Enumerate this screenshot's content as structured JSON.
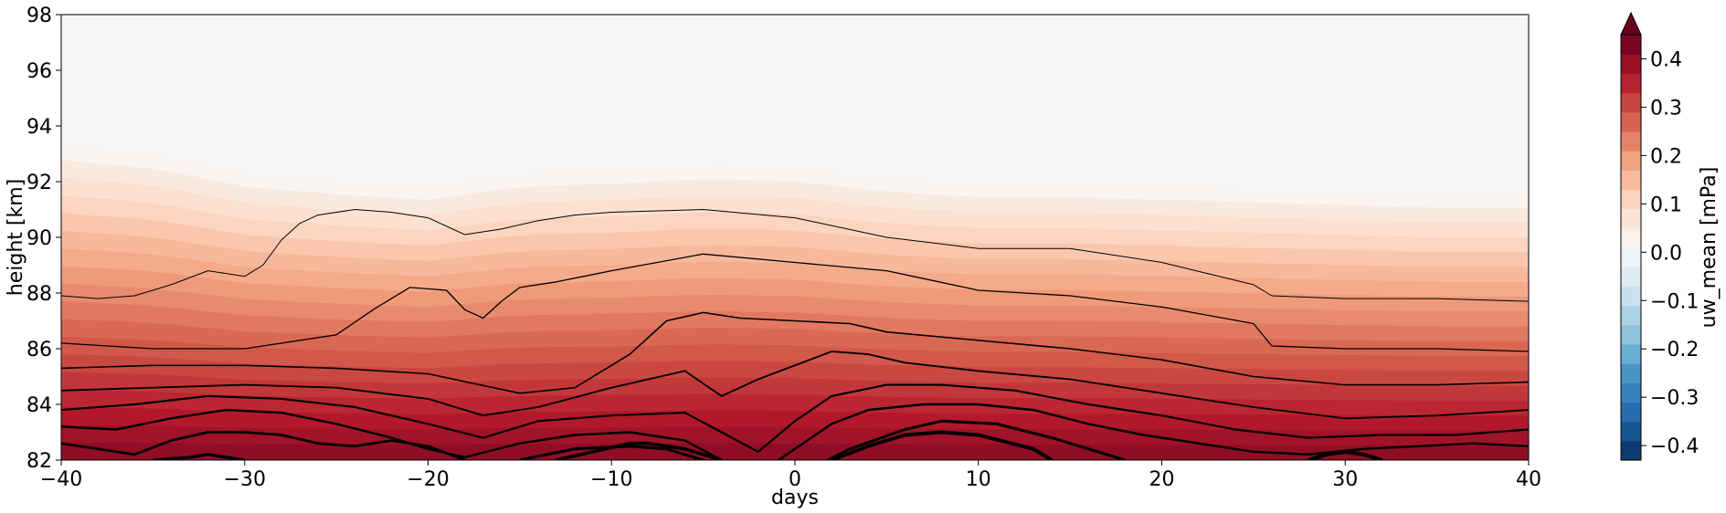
{
  "chart_data": {
    "type": "heatmap",
    "subtype": "filled-contour",
    "xlabel": "days",
    "ylabel": "height [km]",
    "xlim": [
      -40,
      40
    ],
    "ylim": [
      82,
      98
    ],
    "xticks": [
      -40,
      -30,
      -20,
      -10,
      0,
      10,
      20,
      30,
      40
    ],
    "yticks": [
      82,
      84,
      86,
      88,
      90,
      92,
      94,
      96,
      98
    ],
    "colormap": "RdBu_r",
    "colorbar": {
      "label": "uw_mean [mPa]",
      "range": [
        -0.43,
        0.45
      ],
      "ticks": [
        -0.4,
        -0.3,
        -0.2,
        -0.1,
        0.0,
        0.1,
        0.2,
        0.3,
        0.4
      ],
      "extend": "max"
    },
    "contour_color": "#000000",
    "levels_top_height_km": [
      {
        "x": [
          -40,
          -35,
          -30,
          -25,
          -20,
          -15,
          -10,
          -5,
          0,
          5,
          10,
          15,
          20,
          25,
          30,
          35,
          40
        ],
        "y": [
          93.4,
          93.1,
          92.4,
          92.1,
          91.9,
          92.4,
          92.5,
          92.7,
          92.6,
          92.2,
          92.0,
          92.0,
          91.9,
          91.8,
          91.7,
          91.6,
          91.6
        ]
      }
    ],
    "contour_lines": [
      {
        "name": "",
        "x": [
          -40,
          -38,
          -36,
          -34,
          -32,
          -30,
          -29,
          -28,
          -27,
          -26,
          -24,
          -22,
          -20,
          -18,
          -16,
          -14,
          -12,
          -10,
          -5,
          0,
          5,
          10,
          15,
          20,
          25,
          26,
          30,
          35,
          40
        ],
        "y": [
          87.9,
          87.8,
          87.9,
          88.3,
          88.8,
          88.6,
          89.0,
          89.9,
          90.5,
          90.8,
          91.0,
          90.9,
          90.7,
          90.1,
          90.3,
          90.6,
          90.8,
          90.9,
          91.0,
          90.7,
          90.0,
          89.6,
          89.6,
          89.1,
          88.3,
          87.9,
          87.8,
          87.8,
          87.7
        ]
      },
      {
        "name": "",
        "x": [
          -40,
          -35,
          -30,
          -25,
          -23,
          -21,
          -19,
          -18,
          -17,
          -16,
          -15,
          -13,
          -10,
          -5,
          0,
          5,
          10,
          15,
          20,
          25,
          26,
          30,
          35,
          40
        ],
        "y": [
          86.2,
          86.0,
          86.0,
          86.5,
          87.4,
          88.2,
          88.1,
          87.4,
          87.1,
          87.7,
          88.2,
          88.4,
          88.8,
          89.4,
          89.1,
          88.8,
          88.1,
          87.9,
          87.5,
          86.9,
          86.1,
          86.0,
          86.0,
          85.9
        ]
      },
      {
        "name": "",
        "x": [
          -40,
          -35,
          -30,
          -25,
          -20,
          -15,
          -12,
          -9,
          -7,
          -5,
          -3,
          0,
          3,
          5,
          10,
          15,
          20,
          25,
          30,
          35,
          40
        ],
        "y": [
          85.3,
          85.4,
          85.4,
          85.3,
          85.1,
          84.4,
          84.6,
          85.8,
          87.0,
          87.3,
          87.1,
          87.0,
          86.9,
          86.6,
          86.3,
          86.0,
          85.6,
          85.0,
          84.7,
          84.7,
          84.8
        ]
      },
      {
        "name": "",
        "x": [
          -40,
          -35,
          -30,
          -25,
          -20,
          -17,
          -14,
          -10,
          -6,
          -4,
          -2,
          0,
          2,
          4,
          6,
          10,
          15,
          20,
          25,
          30,
          35,
          40
        ],
        "y": [
          84.5,
          84.6,
          84.7,
          84.6,
          84.2,
          83.6,
          83.9,
          84.6,
          85.2,
          84.3,
          84.9,
          85.4,
          85.9,
          85.8,
          85.5,
          85.2,
          84.9,
          84.4,
          83.9,
          83.5,
          83.6,
          83.8
        ]
      },
      {
        "name": "",
        "x": [
          -40,
          -36,
          -32,
          -28,
          -24,
          -20,
          -17,
          -14,
          -10,
          -6,
          -4,
          -2,
          0,
          2,
          5,
          8,
          12,
          16,
          20,
          24,
          28,
          32,
          36,
          40
        ],
        "y": [
          83.8,
          84.0,
          84.3,
          84.2,
          83.9,
          83.3,
          82.8,
          83.4,
          83.6,
          83.7,
          83.0,
          82.3,
          83.4,
          84.3,
          84.7,
          84.7,
          84.5,
          84.0,
          83.6,
          83.1,
          82.8,
          82.9,
          82.9,
          83.1
        ]
      },
      {
        "name": "",
        "x": [
          -40,
          -37,
          -34,
          -31,
          -28,
          -25,
          -22,
          -20,
          -18,
          -15,
          -12,
          -9,
          -6,
          -4,
          -2,
          0,
          2,
          4,
          7,
          10,
          13,
          16,
          19,
          22,
          25,
          28,
          31,
          34,
          37,
          40
        ],
        "y": [
          83.2,
          83.1,
          83.5,
          83.8,
          83.7,
          83.3,
          82.8,
          82.4,
          82.1,
          82.6,
          82.9,
          83.0,
          82.7,
          82.0,
          81.5,
          82.4,
          83.3,
          83.8,
          84.0,
          84.0,
          83.8,
          83.3,
          82.9,
          82.6,
          82.3,
          82.2,
          82.4,
          82.5,
          82.6,
          82.5
        ]
      },
      {
        "name": "",
        "x": [
          -40,
          -38,
          -36,
          -34,
          -32,
          -30,
          -28,
          -26,
          -24,
          -22,
          -20,
          -18
        ],
        "y": [
          82.6,
          82.4,
          82.2,
          82.7,
          83.0,
          83.0,
          82.9,
          82.6,
          82.5,
          82.7,
          82.5,
          82.0
        ]
      },
      {
        "name": "",
        "x": [
          -15,
          -12,
          -9,
          -7,
          -5,
          -3,
          0,
          3,
          6,
          8,
          11,
          14,
          16,
          18
        ],
        "y": [
          82.0,
          82.4,
          82.5,
          82.4,
          82.0,
          81.6,
          81.4,
          82.4,
          83.1,
          83.4,
          83.3,
          82.8,
          82.4,
          82.0
        ]
      },
      {
        "name": "",
        "x": [
          -35,
          -33,
          -32,
          -31,
          -30
        ],
        "y": [
          82.0,
          82.1,
          82.2,
          82.1,
          82.0
        ]
      },
      {
        "name": "",
        "x": [
          -13,
          -11,
          -9,
          -8,
          -6,
          -4
        ],
        "y": [
          82.0,
          82.3,
          82.6,
          82.6,
          82.4,
          82.0
        ]
      },
      {
        "name": "",
        "x": [
          2,
          4,
          6,
          8,
          10,
          13,
          14
        ],
        "y": [
          82.0,
          82.5,
          82.9,
          83.0,
          82.9,
          82.4,
          82.0
        ]
      },
      {
        "name": "",
        "x": [
          28,
          29,
          30,
          31,
          32
        ],
        "y": [
          82.0,
          82.2,
          82.3,
          82.2,
          82.0
        ]
      }
    ]
  }
}
